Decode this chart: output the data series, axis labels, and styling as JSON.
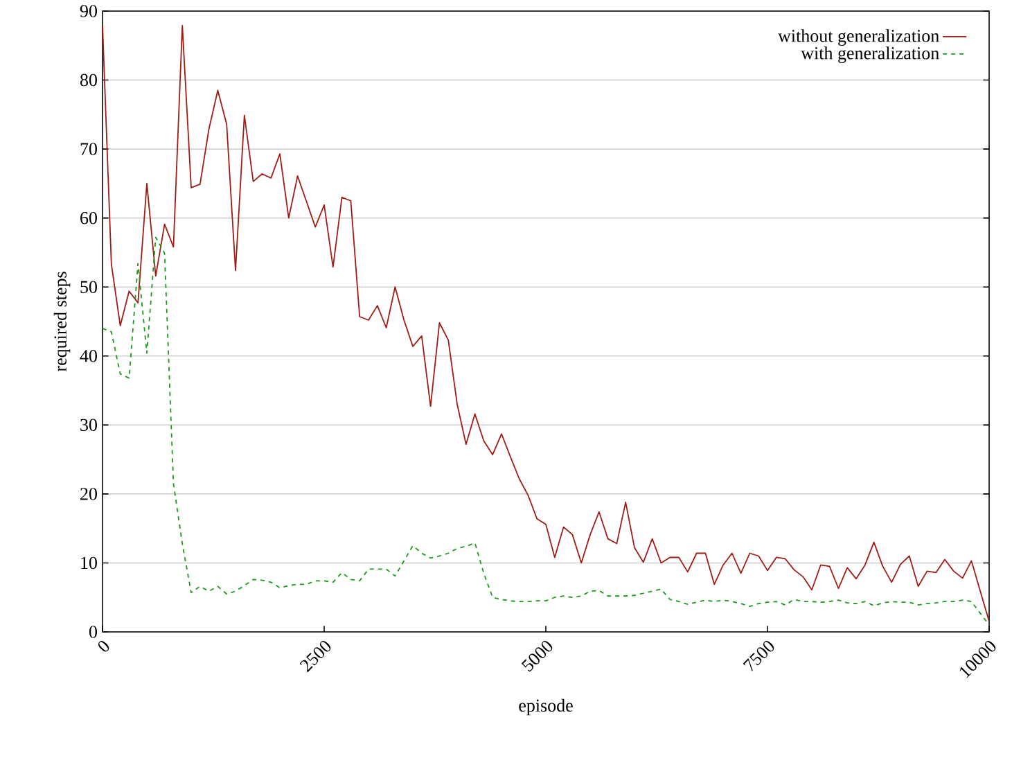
{
  "chart_data": {
    "type": "line",
    "xlabel": "episode",
    "ylabel": "required steps",
    "x": [
      0,
      100,
      200,
      300,
      400,
      500,
      600,
      700,
      800,
      900,
      1000,
      1100,
      1200,
      1300,
      1400,
      1500,
      1600,
      1700,
      1800,
      1900,
      2000,
      2100,
      2200,
      2300,
      2400,
      2500,
      2600,
      2700,
      2800,
      2900,
      3000,
      3100,
      3200,
      3300,
      3400,
      3500,
      3600,
      3700,
      3800,
      3900,
      4000,
      4100,
      4200,
      4300,
      4400,
      4500,
      4600,
      4700,
      4800,
      4900,
      5000,
      5100,
      5200,
      5300,
      5400,
      5500,
      5600,
      5700,
      5800,
      5900,
      6000,
      6100,
      6200,
      6300,
      6400,
      6500,
      6600,
      6700,
      6800,
      6900,
      7000,
      7100,
      7200,
      7300,
      7400,
      7500,
      7600,
      7700,
      7800,
      7900,
      8000,
      8100,
      8200,
      8300,
      8400,
      8500,
      8600,
      8700,
      8800,
      8900,
      9000,
      9100,
      9200,
      9300,
      9400,
      9500,
      9600,
      9700,
      9800,
      10000
    ],
    "series": [
      {
        "name": "without generalization",
        "color": "#a01c14",
        "line_style": "solid",
        "values": [
          88,
          53.3,
          44.4,
          49.4,
          47.7,
          65,
          51.6,
          59.1,
          55.8,
          87.9,
          64.4,
          64.9,
          72.9,
          78.5,
          73.6,
          52.4,
          74.9,
          65.3,
          66.4,
          65.8,
          69.3,
          60,
          66.1,
          62.4,
          58.7,
          61.9,
          52.9,
          63,
          62.5,
          45.7,
          45.2,
          47.3,
          44.1,
          50,
          45.2,
          41.4,
          42.9,
          32.7,
          44.8,
          42.3,
          33,
          27.2,
          31.6,
          27.7,
          25.7,
          28.7,
          25.4,
          22.2,
          19.8,
          16.4,
          15.6,
          10.8,
          15.2,
          14.1,
          10,
          14.1,
          17.4,
          13.5,
          12.8,
          18.8,
          12.2,
          10.1,
          13.5,
          10,
          10.8,
          10.8,
          8.7,
          11.4,
          11.4,
          6.9,
          9.7,
          11.4,
          8.5,
          11.4,
          11,
          8.9,
          10.8,
          10.6,
          9,
          8,
          6.1,
          9.7,
          9.5,
          6.3,
          9.3,
          7.7,
          9.7,
          13,
          9.5,
          7.2,
          9.8,
          11,
          6.6,
          8.8,
          8.6,
          10.5,
          8.8,
          7.8,
          10.3,
          1.5
        ]
      },
      {
        "name": "with generalization",
        "color": "#1a9a1a",
        "line_style": "dashed",
        "values": [
          44,
          43.5,
          37.4,
          36.8,
          53.4,
          40.4,
          57.2,
          54.9,
          21.5,
          12.8,
          5.7,
          6.6,
          5.9,
          6.6,
          5.5,
          5.9,
          6.7,
          7.6,
          7.5,
          7.2,
          6.4,
          6.7,
          6.9,
          6.9,
          7.4,
          7.4,
          7.2,
          8.6,
          7.6,
          7.4,
          9.1,
          9.1,
          9.1,
          8.1,
          10.3,
          12.5,
          11.4,
          10.7,
          11,
          11.4,
          12.1,
          12.4,
          12.9,
          8.5,
          5,
          4.7,
          4.5,
          4.4,
          4.4,
          4.5,
          4.5,
          5,
          5.2,
          5,
          5.2,
          5.9,
          6,
          5.2,
          5.2,
          5.2,
          5.3,
          5.6,
          5.9,
          6.2,
          4.7,
          4.4,
          4,
          4.3,
          4.6,
          4.4,
          4.6,
          4.4,
          4.1,
          3.7,
          4.1,
          4.3,
          4.4,
          3.9,
          4.7,
          4.4,
          4.4,
          4.3,
          4.4,
          4.6,
          4.2,
          4.1,
          4.4,
          3.8,
          4.2,
          4.4,
          4.3,
          4.3,
          3.9,
          4.1,
          4.2,
          4.4,
          4.4,
          4.6,
          4.4,
          1
        ]
      }
    ],
    "xlim": [
      0,
      10000
    ],
    "xticks": [
      0,
      2500,
      5000,
      7500,
      10000
    ],
    "ylim": [
      0,
      90
    ],
    "yticks": [
      0,
      10,
      20,
      30,
      40,
      50,
      60,
      70,
      80,
      90
    ],
    "grid": "y",
    "legend": "top right",
    "marker": "none"
  }
}
